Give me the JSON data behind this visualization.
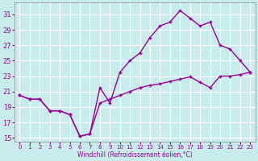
{
  "xlabel": "Windchill (Refroidissement éolien,°C)",
  "background_color": "#c8ecec",
  "line_color": "#990099",
  "grid_color": "#ffffff",
  "x_hours": [
    0,
    1,
    2,
    3,
    4,
    5,
    6,
    7,
    8,
    9,
    10,
    11,
    12,
    13,
    14,
    15,
    16,
    17,
    18,
    19,
    20,
    21,
    22,
    23
  ],
  "temp_values": [
    20.5,
    20.0,
    20.0,
    18.5,
    18.5,
    18.0,
    15.2,
    15.5,
    21.5,
    19.5,
    23.5,
    25.0,
    26.0,
    28.0,
    29.5,
    30.0,
    31.5,
    30.5,
    29.5,
    30.0,
    27.0,
    26.5,
    25.0,
    23.5
  ],
  "windchill_values": [
    20.5,
    20.0,
    20.0,
    18.5,
    18.5,
    18.0,
    15.2,
    15.5,
    19.5,
    20.0,
    20.5,
    21.0,
    21.5,
    21.8,
    22.0,
    22.3,
    22.6,
    22.9,
    22.2,
    21.5,
    23.0,
    23.0,
    23.2,
    23.5
  ],
  "ylim": [
    14.5,
    32.5
  ],
  "xlim": [
    -0.5,
    23.5
  ],
  "yticks": [
    15,
    17,
    19,
    21,
    23,
    25,
    27,
    29,
    31
  ],
  "xticks": [
    0,
    1,
    2,
    3,
    4,
    5,
    6,
    7,
    8,
    9,
    10,
    11,
    12,
    13,
    14,
    15,
    16,
    17,
    18,
    19,
    20,
    21,
    22,
    23
  ]
}
